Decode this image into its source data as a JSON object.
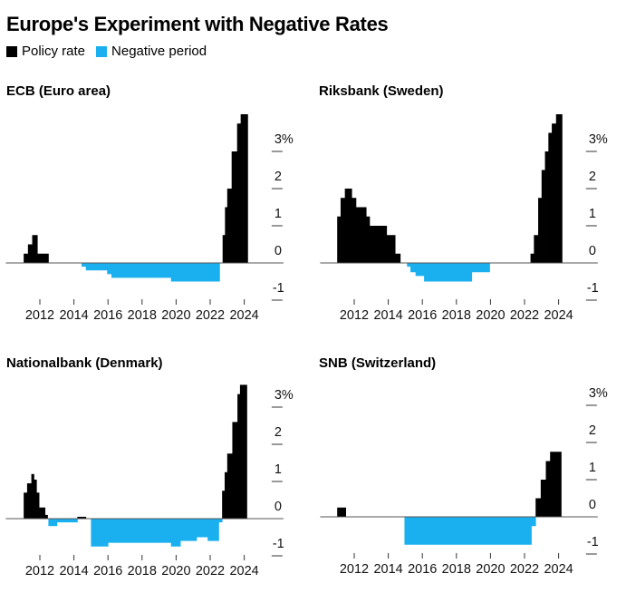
{
  "title": "Europe's Experiment with Negative Rates",
  "legend": [
    {
      "label": "Policy rate",
      "color": "#000000"
    },
    {
      "label": "Negative period",
      "color": "#1ab0ef"
    }
  ],
  "chart_data": [
    {
      "type": "area",
      "title": "ECB (Euro area)",
      "x_ticks": [
        "2012",
        "2014",
        "2016",
        "2018",
        "2020",
        "2022",
        "2024"
      ],
      "y_ticks": [
        "3%",
        "2",
        "1",
        "0",
        "-1"
      ],
      "xlim": [
        2010,
        2026.3
      ],
      "ylim": [
        -1,
        4
      ],
      "steps": [
        [
          2010,
          0
        ],
        [
          2011.05,
          0.25
        ],
        [
          2011.3,
          0.5
        ],
        [
          2011.55,
          0.75
        ],
        [
          2011.85,
          0.25
        ],
        [
          2012.5,
          0
        ],
        [
          2014.45,
          -0.1
        ],
        [
          2014.7,
          -0.2
        ],
        [
          2015.95,
          -0.3
        ],
        [
          2016.2,
          -0.4
        ],
        [
          2019.7,
          -0.5
        ],
        [
          2022.55,
          0
        ],
        [
          2022.73,
          0.75
        ],
        [
          2022.87,
          1.5
        ],
        [
          2023.0,
          2.0
        ],
        [
          2023.26,
          3.0
        ],
        [
          2023.58,
          3.75
        ],
        [
          2023.79,
          4.0
        ],
        [
          2024.2,
          0
        ]
      ]
    },
    {
      "type": "area",
      "title": "Riksbank (Sweden)",
      "x_ticks": [
        "2012",
        "2014",
        "2016",
        "2018",
        "2020",
        "2022",
        "2024"
      ],
      "y_ticks": [
        "3%",
        "2",
        "1",
        "0",
        "-1"
      ],
      "xlim": [
        2010,
        2026.3
      ],
      "ylim": [
        -1,
        4
      ],
      "steps": [
        [
          2010,
          0
        ],
        [
          2011.0,
          1.25
        ],
        [
          2011.2,
          1.75
        ],
        [
          2011.45,
          2.0
        ],
        [
          2011.85,
          1.75
        ],
        [
          2012.1,
          1.5
        ],
        [
          2012.7,
          1.25
        ],
        [
          2012.9,
          1.0
        ],
        [
          2013.9,
          0.75
        ],
        [
          2014.4,
          0.25
        ],
        [
          2014.7,
          0
        ],
        [
          2015.1,
          -0.1
        ],
        [
          2015.3,
          -0.25
        ],
        [
          2015.6,
          -0.35
        ],
        [
          2016.1,
          -0.5
        ],
        [
          2018.9,
          -0.25
        ],
        [
          2019.95,
          0
        ],
        [
          2022.35,
          0.25
        ],
        [
          2022.55,
          0.75
        ],
        [
          2022.8,
          1.75
        ],
        [
          2023.0,
          2.5
        ],
        [
          2023.2,
          3.0
        ],
        [
          2023.4,
          3.5
        ],
        [
          2023.6,
          3.75
        ],
        [
          2023.85,
          4.0
        ],
        [
          2024.2,
          0
        ]
      ]
    },
    {
      "type": "area",
      "title": "Nationalbank (Denmark)",
      "x_ticks": [
        "2012",
        "2014",
        "2016",
        "2018",
        "2020",
        "2022",
        "2024"
      ],
      "y_ticks": [
        "3%",
        "2",
        "1",
        "0",
        "-1"
      ],
      "xlim": [
        2010,
        2026.3
      ],
      "ylim": [
        -1,
        3.6
      ],
      "steps": [
        [
          2010,
          0
        ],
        [
          2011.05,
          0.7
        ],
        [
          2011.25,
          0.95
        ],
        [
          2011.5,
          1.2
        ],
        [
          2011.65,
          1.05
        ],
        [
          2011.8,
          0.7
        ],
        [
          2011.95,
          0.3
        ],
        [
          2012.3,
          0.1
        ],
        [
          2012.45,
          0
        ],
        [
          2012.5,
          -0.2
        ],
        [
          2013.0,
          -0.1
        ],
        [
          2014.2,
          0.05
        ],
        [
          2014.7,
          0
        ],
        [
          2015.0,
          -0.75
        ],
        [
          2016.0,
          -0.65
        ],
        [
          2019.7,
          -0.75
        ],
        [
          2020.25,
          -0.6
        ],
        [
          2021.2,
          -0.5
        ],
        [
          2021.85,
          -0.6
        ],
        [
          2022.5,
          -0.1
        ],
        [
          2022.7,
          0.75
        ],
        [
          2022.85,
          1.25
        ],
        [
          2023.0,
          1.75
        ],
        [
          2023.3,
          2.6
        ],
        [
          2023.6,
          3.35
        ],
        [
          2023.75,
          3.6
        ],
        [
          2024.15,
          0
        ]
      ]
    },
    {
      "type": "area",
      "title": "SNB (Switzerland)",
      "x_ticks": [
        "2012",
        "2014",
        "2016",
        "2018",
        "2020",
        "2022",
        "2024"
      ],
      "y_ticks": [
        "3%",
        "2",
        "1",
        "0",
        "-1"
      ],
      "xlim": [
        2010,
        2026.3
      ],
      "ylim": [
        -1,
        3
      ],
      "steps": [
        [
          2010,
          0
        ],
        [
          2011.0,
          0.25
        ],
        [
          2011.5,
          0
        ],
        [
          2014.95,
          -0.75
        ],
        [
          2022.4,
          -0.25
        ],
        [
          2022.65,
          0.5
        ],
        [
          2022.95,
          1.0
        ],
        [
          2023.25,
          1.5
        ],
        [
          2023.5,
          1.75
        ],
        [
          2024.15,
          0
        ]
      ]
    }
  ]
}
